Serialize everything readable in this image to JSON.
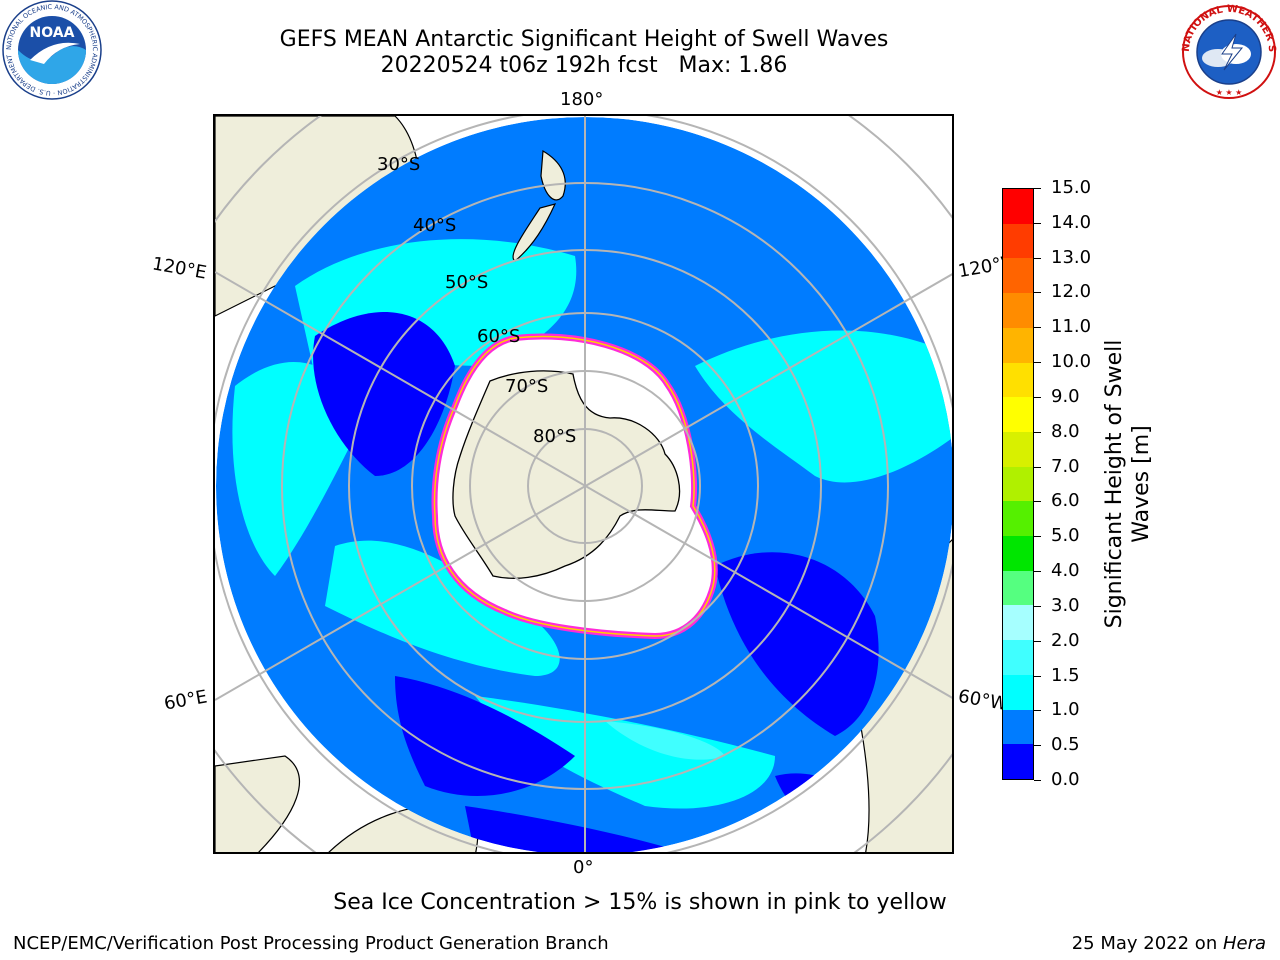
{
  "header": {
    "title_line1": "GEFS MEAN Antarctic Significant Height of Swell Waves",
    "title_line2": "20220524 t06z 192h fcst   Max: 1.86"
  },
  "logos": {
    "left": {
      "icon": "noaa-logo-icon",
      "text": "NOAA",
      "ring_text": "NATIONAL OCEANIC AND ATMOSPHERIC ADMINISTRATION · U.S. DEPARTMENT OF COMMERCE"
    },
    "right": {
      "icon": "nws-logo-icon",
      "ring_text": "NATIONAL WEATHER SERVICE"
    }
  },
  "map": {
    "projection": "south-polar-stereographic",
    "longitude_labels": [
      "180°",
      "120°E",
      "120°W",
      "60°E",
      "60°W",
      "0°"
    ],
    "latitude_labels": [
      "30°S",
      "40°S",
      "50°S",
      "60°S",
      "70°S",
      "80°S"
    ],
    "colors": {
      "land": "#efeedb",
      "sea_ice": "#ffffff",
      "grid": "#b5b5b5",
      "swell_0_0_5": "#0000ff",
      "swell_0_5_1_0": "#007cff",
      "swell_1_0_1_5": "#00ffff",
      "swell_1_5_2_0": "#40ffff",
      "ice_edge_pink": "#ff2bd8",
      "ice_edge_yellow": "#ffd000"
    }
  },
  "colorbar": {
    "label_line1": "Significant Height of Swell",
    "label_line2": "Waves [m]",
    "ticks": [
      "0.0",
      "0.5",
      "1.0",
      "1.5",
      "2.0",
      "3.0",
      "4.0",
      "5.0",
      "6.0",
      "7.0",
      "8.0",
      "9.0",
      "10.0",
      "11.0",
      "12.0",
      "13.0",
      "14.0",
      "15.0"
    ],
    "colors": [
      "#0000ff",
      "#007cff",
      "#00ffff",
      "#40ffff",
      "#a6ffff",
      "#55ff80",
      "#00e600",
      "#55f000",
      "#b0f000",
      "#d8f000",
      "#ffff00",
      "#ffe000",
      "#ffb400",
      "#ff8c00",
      "#ff6400",
      "#ff3c00",
      "#ff0000"
    ]
  },
  "footer": {
    "footnote": "Sea Ice Concentration > 15% is shown in pink to yellow",
    "credit_left": "NCEP/EMC/Verification Post Processing Product Generation Branch",
    "credit_right_prefix": "25 May 2022 on ",
    "credit_right_machine": "Hera"
  }
}
